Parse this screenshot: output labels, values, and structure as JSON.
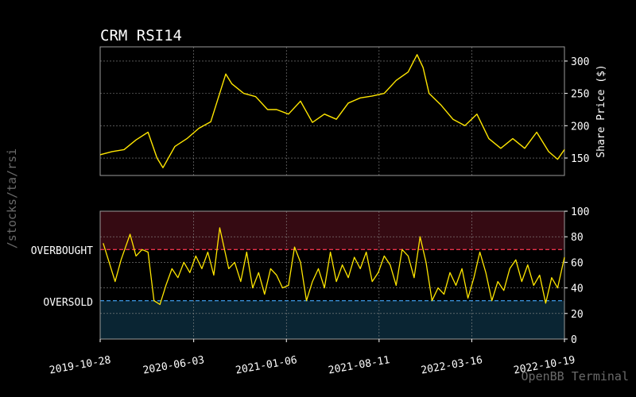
{
  "watermark_left": "/stocks/ta/rsi",
  "watermark_right": "OpenBB Terminal",
  "colors": {
    "background": "#000000",
    "line": "#ffe600",
    "axis_text": "#ffffff",
    "grid": "#8a8a8a",
    "overbought_zone": "#350a12",
    "oversold_zone": "#0a2533",
    "overbought_line": "#e8334a",
    "oversold_line": "#3a8fd6",
    "watermark": "#6a6a6a"
  },
  "chart_data": [
    {
      "type": "line",
      "title": "CRM RSI14",
      "ylabel": "Share Price ($)",
      "ylim": [
        123,
        322
      ],
      "yticks": [
        150,
        200,
        250,
        300
      ],
      "grid": true,
      "y_axis_side": "right",
      "series": [
        {
          "x": [
            "2019-10-28",
            "2019-11-25",
            "2019-12-23",
            "2020-01-20",
            "2020-02-17",
            "2020-03-09",
            "2020-03-23",
            "2020-04-20",
            "2020-05-18",
            "2020-06-15",
            "2020-07-13",
            "2020-08-17",
            "2020-08-31",
            "2020-09-28",
            "2020-10-26",
            "2020-11-23",
            "2020-12-14",
            "2021-01-11",
            "2021-02-08",
            "2021-03-08",
            "2021-04-05",
            "2021-05-03",
            "2021-05-31",
            "2021-06-28",
            "2021-07-26",
            "2021-08-23",
            "2021-09-20",
            "2021-10-18",
            "2021-11-08",
            "2021-11-22",
            "2021-12-06",
            "2022-01-03",
            "2022-01-31",
            "2022-02-28",
            "2022-03-28",
            "2022-04-25",
            "2022-05-23",
            "2022-06-20",
            "2022-07-18",
            "2022-08-15",
            "2022-09-12",
            "2022-10-03",
            "2022-10-19"
          ],
          "values": [
            155,
            160,
            163,
            178,
            190,
            150,
            135,
            168,
            180,
            196,
            206,
            280,
            265,
            250,
            245,
            225,
            225,
            218,
            238,
            205,
            218,
            210,
            235,
            243,
            246,
            250,
            270,
            283,
            310,
            290,
            250,
            232,
            210,
            200,
            218,
            180,
            165,
            180,
            165,
            190,
            160,
            148,
            163
          ]
        }
      ]
    },
    {
      "type": "line",
      "xlabel": "",
      "ylim": [
        0,
        100
      ],
      "yticks": [
        0,
        20,
        40,
        60,
        80,
        100
      ],
      "y_axis_side": "right",
      "grid": true,
      "xlim": [
        "2019-10-28",
        "2022-10-19"
      ],
      "xticks": [
        "2019-10-28",
        "2020-06-03",
        "2021-01-06",
        "2021-08-11",
        "2022-03-16",
        "2022-10-19"
      ],
      "overbought": 70,
      "oversold": 30,
      "overbought_label": "OVERBOUGHT",
      "oversold_label": "OVERSOLD",
      "series": [
        {
          "x": [
            "2019-11-04",
            "2019-11-18",
            "2019-12-02",
            "2019-12-16",
            "2020-01-06",
            "2020-01-20",
            "2020-02-03",
            "2020-02-17",
            "2020-03-02",
            "2020-03-16",
            "2020-03-30",
            "2020-04-13",
            "2020-04-27",
            "2020-05-11",
            "2020-05-25",
            "2020-06-08",
            "2020-06-22",
            "2020-07-06",
            "2020-07-20",
            "2020-08-03",
            "2020-08-24",
            "2020-09-07",
            "2020-09-21",
            "2020-10-05",
            "2020-10-19",
            "2020-11-02",
            "2020-11-16",
            "2020-11-30",
            "2020-12-14",
            "2020-12-28",
            "2021-01-11",
            "2021-01-25",
            "2021-02-08",
            "2021-02-22",
            "2021-03-08",
            "2021-03-22",
            "2021-04-05",
            "2021-04-19",
            "2021-05-03",
            "2021-05-17",
            "2021-05-31",
            "2021-06-14",
            "2021-06-28",
            "2021-07-12",
            "2021-07-26",
            "2021-08-09",
            "2021-08-23",
            "2021-09-06",
            "2021-09-20",
            "2021-10-04",
            "2021-10-18",
            "2021-11-01",
            "2021-11-15",
            "2021-11-29",
            "2021-12-13",
            "2021-12-27",
            "2022-01-10",
            "2022-01-24",
            "2022-02-07",
            "2022-02-21",
            "2022-03-07",
            "2022-03-21",
            "2022-04-04",
            "2022-04-18",
            "2022-05-02",
            "2022-05-16",
            "2022-05-30",
            "2022-06-13",
            "2022-06-27",
            "2022-07-11",
            "2022-07-25",
            "2022-08-08",
            "2022-08-22",
            "2022-09-05",
            "2022-09-19",
            "2022-10-03",
            "2022-10-19"
          ],
          "values": [
            75,
            60,
            45,
            62,
            82,
            65,
            70,
            68,
            30,
            27,
            42,
            55,
            48,
            60,
            52,
            65,
            55,
            68,
            50,
            87,
            55,
            60,
            45,
            68,
            40,
            52,
            35,
            55,
            50,
            40,
            42,
            72,
            60,
            30,
            45,
            55,
            40,
            68,
            45,
            58,
            48,
            64,
            55,
            68,
            45,
            52,
            65,
            58,
            42,
            70,
            65,
            48,
            80,
            60,
            30,
            40,
            35,
            52,
            42,
            55,
            32,
            48,
            68,
            52,
            30,
            45,
            38,
            55,
            62,
            45,
            58,
            42,
            50,
            28,
            48,
            40,
            64
          ]
        }
      ]
    }
  ]
}
